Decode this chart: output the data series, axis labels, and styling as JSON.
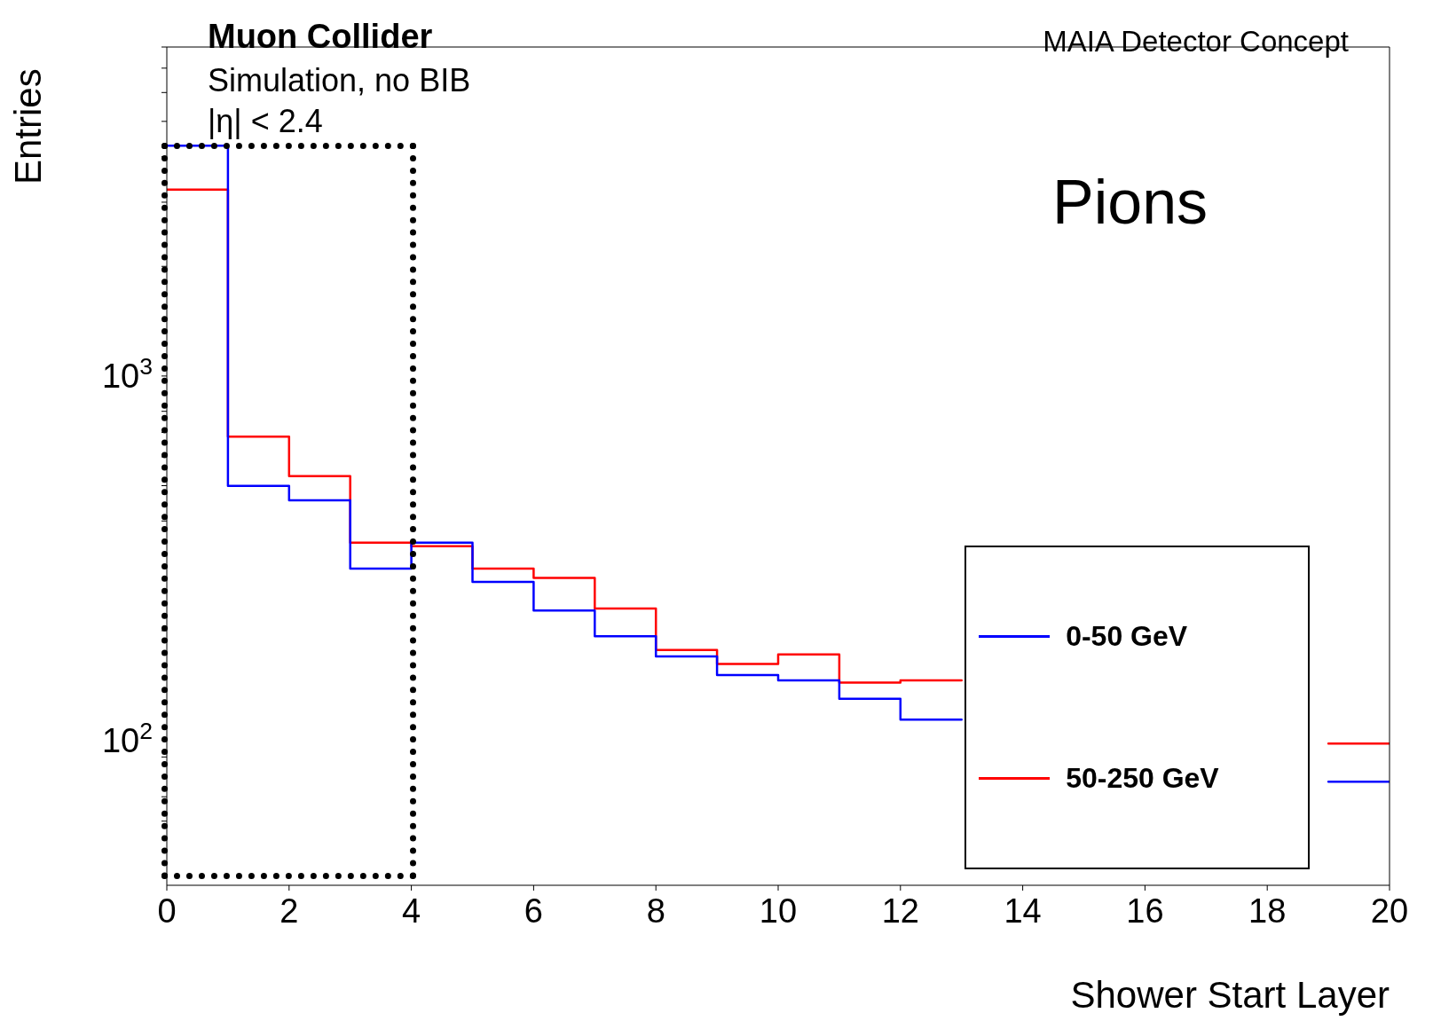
{
  "chart_data": {
    "type": "step",
    "title": "Muon Collider",
    "subtitle": "Simulation, no BIB",
    "xlabel": "Shower Start Layer",
    "ylabel": "Entries",
    "annotations": [
      "|η| < 2.4",
      "MAIA Detector Concept",
      "Pions"
    ],
    "x": [
      0,
      1,
      2,
      3,
      4,
      5,
      6,
      7,
      8,
      9,
      10,
      11,
      12,
      13,
      14,
      15,
      16,
      17,
      18,
      19,
      20
    ],
    "series": [
      {
        "name": "0-50 GeV",
        "color": "#0000ff",
        "values": [
          4290,
          499,
          456,
          296,
          349,
          272,
          227,
          193,
          170,
          151,
          146,
          130,
          114,
          null,
          null,
          null,
          null,
          null,
          null,
          77,
          77
        ]
      },
      {
        "name": "50-250 GeV",
        "color": "#ff0000",
        "values": [
          3250,
          682,
          531,
          349,
          341,
          296,
          279,
          230,
          177,
          162,
          172,
          144,
          146,
          null,
          null,
          null,
          null,
          null,
          null,
          98,
          98
        ]
      }
    ],
    "xlim": [
      0,
      20
    ],
    "xticks": [
      0,
      2,
      4,
      6,
      8,
      10,
      12,
      14,
      16,
      18,
      20
    ],
    "ylim": [
      40,
      8000
    ],
    "yticks": [
      {
        "value": 50,
        "label": null
      },
      {
        "value": 60,
        "label": null
      },
      {
        "value": 70,
        "label": null
      },
      {
        "value": 80,
        "label": null
      },
      {
        "value": 90,
        "label": null
      },
      {
        "value": 100,
        "label": "10$^{2}$"
      },
      {
        "value": 200,
        "label": null
      },
      {
        "value": 300,
        "label": null
      },
      {
        "value": 400,
        "label": null
      },
      {
        "value": 500,
        "label": null
      },
      {
        "value": 600,
        "label": null
      },
      {
        "value": 700,
        "label": null
      },
      {
        "value": 800,
        "label": null
      },
      {
        "value": 900,
        "label": null
      },
      {
        "value": 1000,
        "label": "10$^{3}$"
      },
      {
        "value": 2000,
        "label": null
      },
      {
        "value": 3000,
        "label": null
      },
      {
        "value": 4000,
        "label": null
      },
      {
        "value": 5000,
        "label": null
      },
      {
        "value": 6000,
        "label": null
      },
      {
        "value": 7000,
        "label": null
      },
      {
        "value": 8000,
        "label": null
      }
    ],
    "log": true,
    "legend": "bottom right"
  }
}
